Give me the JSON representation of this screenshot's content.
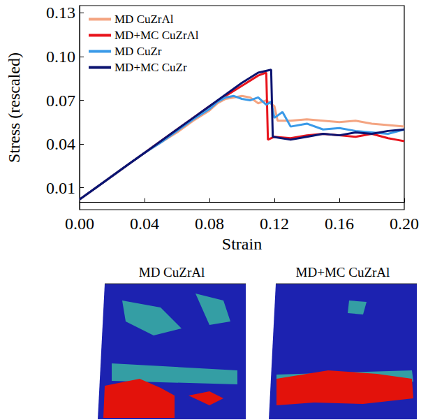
{
  "chart_data": {
    "type": "line",
    "x_label": "Strain",
    "y_label": "Stress (rescaled)",
    "xlim": [
      0,
      0.2
    ],
    "xticks": [
      {
        "value": 0,
        "label": "0.00"
      },
      0.04,
      0.08,
      0.12,
      0.16,
      {
        "value": 0.2,
        "label": "0.20"
      }
    ],
    "ylim": [
      -0.005,
      0.135
    ],
    "yticks": [
      0.01,
      0.04,
      0.07,
      {
        "value": 0.1,
        "label": "0.10"
      },
      0.13
    ],
    "grid": false,
    "legend": "upper left",
    "series": [
      {
        "name": "MD CuZrAl",
        "color": "#f4a582",
        "x": [
          0,
          0.01,
          0.02,
          0.03,
          0.04,
          0.05,
          0.06,
          0.07,
          0.08,
          0.085,
          0.09,
          0.095,
          0.1,
          0.105,
          0.11,
          0.115,
          0.12,
          0.122,
          0.13,
          0.14,
          0.15,
          0.16,
          0.17,
          0.18,
          0.19,
          0.2
        ],
        "values": [
          0.002,
          0.01,
          0.018,
          0.026,
          0.034,
          0.041,
          0.048,
          0.056,
          0.063,
          0.068,
          0.071,
          0.072,
          0.073,
          0.072,
          0.068,
          0.07,
          0.066,
          0.056,
          0.056,
          0.057,
          0.056,
          0.055,
          0.056,
          0.054,
          0.053,
          0.052
        ]
      },
      {
        "name": "MD+MC CuZrAl",
        "color": "#e8141c",
        "x": [
          0,
          0.01,
          0.02,
          0.03,
          0.04,
          0.05,
          0.06,
          0.07,
          0.08,
          0.09,
          0.1,
          0.11,
          0.115,
          0.116,
          0.12,
          0.13,
          0.14,
          0.15,
          0.16,
          0.17,
          0.18,
          0.19,
          0.195,
          0.2
        ],
        "values": [
          0.002,
          0.01,
          0.018,
          0.026,
          0.034,
          0.042,
          0.05,
          0.058,
          0.066,
          0.073,
          0.08,
          0.087,
          0.089,
          0.043,
          0.045,
          0.044,
          0.046,
          0.047,
          0.046,
          0.045,
          0.047,
          0.044,
          0.043,
          0.042
        ]
      },
      {
        "name": "MD CuZr",
        "color": "#3a9ae8",
        "x": [
          0,
          0.01,
          0.02,
          0.03,
          0.04,
          0.05,
          0.06,
          0.07,
          0.08,
          0.085,
          0.09,
          0.095,
          0.1,
          0.105,
          0.11,
          0.115,
          0.118,
          0.12,
          0.125,
          0.13,
          0.14,
          0.15,
          0.16,
          0.17,
          0.18,
          0.19,
          0.2
        ],
        "values": [
          0.002,
          0.01,
          0.018,
          0.026,
          0.034,
          0.041,
          0.049,
          0.057,
          0.064,
          0.069,
          0.072,
          0.073,
          0.071,
          0.07,
          0.072,
          0.067,
          0.069,
          0.058,
          0.062,
          0.052,
          0.054,
          0.05,
          0.051,
          0.049,
          0.048,
          0.047,
          0.05
        ]
      },
      {
        "name": "MD+MC CuZr",
        "color": "#0b1370",
        "x": [
          0,
          0.01,
          0.02,
          0.03,
          0.04,
          0.05,
          0.06,
          0.07,
          0.08,
          0.09,
          0.1,
          0.11,
          0.118,
          0.119,
          0.13,
          0.14,
          0.15,
          0.16,
          0.17,
          0.18,
          0.19,
          0.2
        ],
        "values": [
          0.002,
          0.01,
          0.018,
          0.026,
          0.034,
          0.042,
          0.05,
          0.058,
          0.066,
          0.074,
          0.082,
          0.089,
          0.091,
          0.045,
          0.043,
          0.045,
          0.047,
          0.046,
          0.048,
          0.047,
          0.049,
          0.05
        ]
      }
    ]
  },
  "snapshots": [
    "MD CuZrAl",
    "MD+MC CuZrAl"
  ]
}
